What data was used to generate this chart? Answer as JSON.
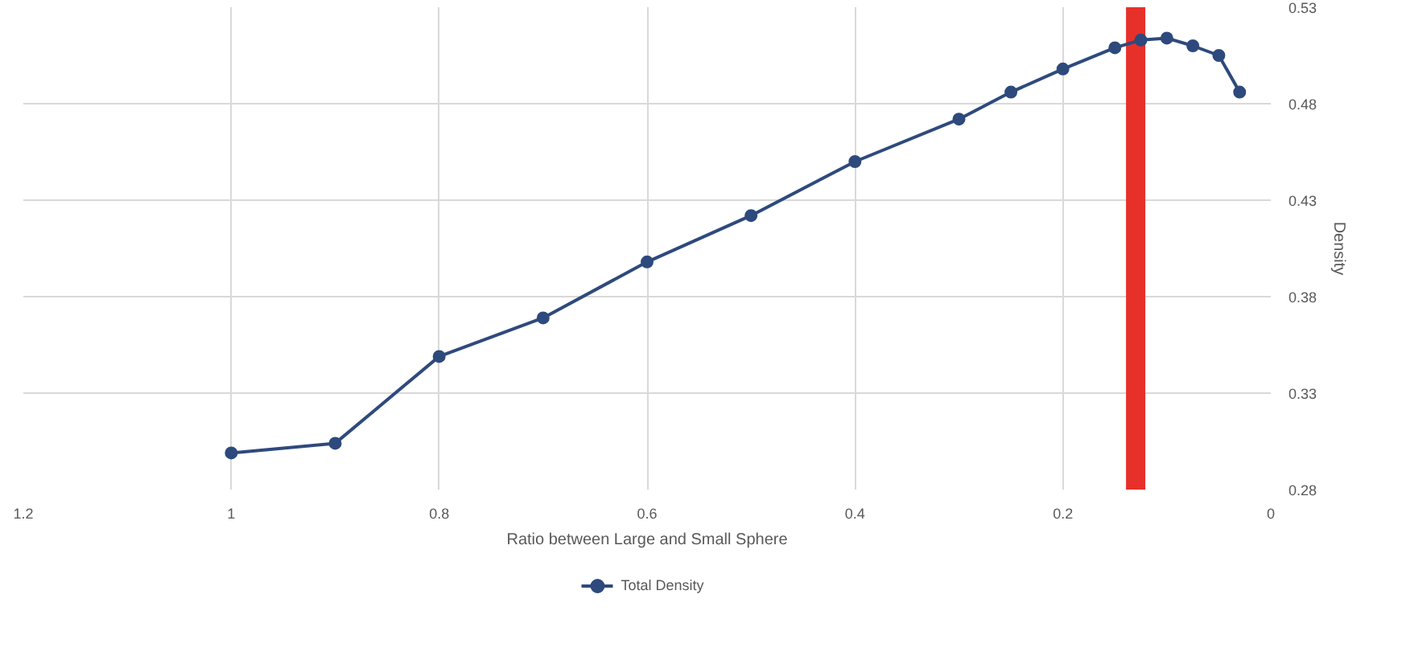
{
  "chart_data": {
    "type": "line",
    "xlabel": "Ratio between Large and Small Sphere",
    "y2label": "Density",
    "x": [
      1.0,
      0.9,
      0.8,
      0.7,
      0.6,
      0.5,
      0.4,
      0.3,
      0.25,
      0.2,
      0.15,
      0.125,
      0.1,
      0.075,
      0.05,
      0.03
    ],
    "series": [
      {
        "name": "Total Density",
        "color": "#2e4a7d",
        "axis": "y2",
        "values": [
          0.299,
          0.304,
          0.349,
          0.369,
          0.398,
          0.422,
          0.45,
          0.472,
          0.486,
          0.498,
          0.509,
          0.513,
          0.514,
          0.51,
          0.505,
          0.486
        ]
      }
    ],
    "xlim": [
      1.2,
      0
    ],
    "xticks": [
      1.2,
      1,
      0.8,
      0.6,
      0.4,
      0.2,
      0
    ],
    "y2lim": [
      0.28,
      0.53
    ],
    "y2ticks": [
      0.28,
      0.33,
      0.38,
      0.43,
      0.48,
      0.53
    ],
    "ref_lines": [
      {
        "axis": "x",
        "value": 0.13,
        "label": null,
        "color": "#e8302a"
      }
    ],
    "grid": true,
    "legend": "bottom",
    "marker": "circle",
    "line_style": "solid"
  }
}
